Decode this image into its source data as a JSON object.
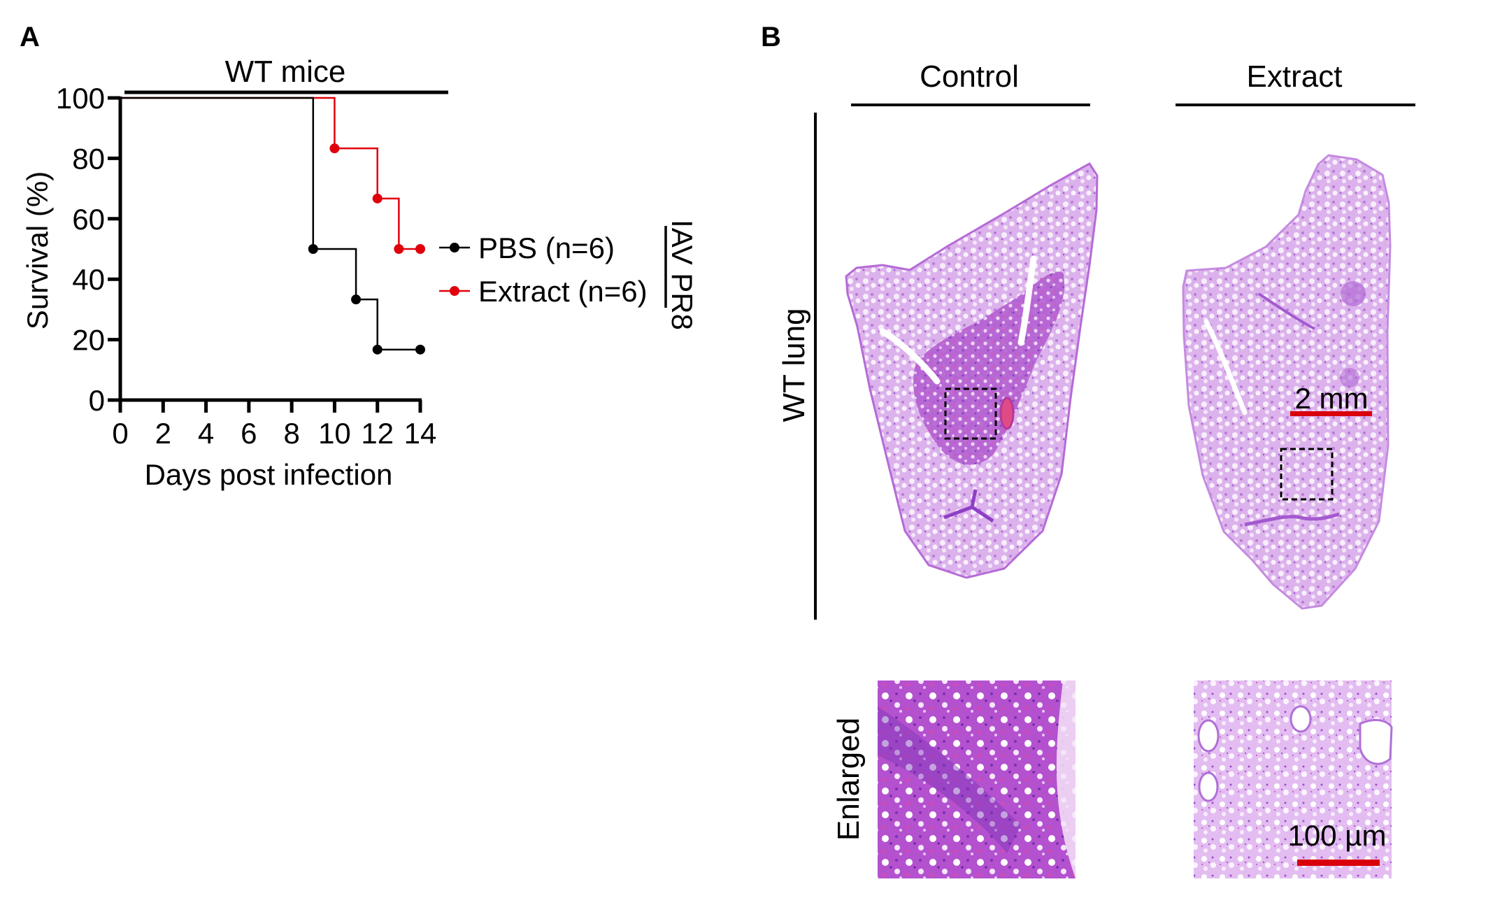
{
  "panels": {
    "a": {
      "letter": "A",
      "group_label": "WT mice",
      "side_label": "IAV PR8"
    },
    "b": {
      "letter": "B",
      "columns": [
        "Control",
        "Extract"
      ],
      "row_labels": {
        "whole": "WT lung",
        "enlarged": "Enlarged"
      },
      "scale_bars": {
        "whole": "2 mm",
        "enlarged": "100 µm"
      }
    }
  },
  "colors": {
    "pbs": "#000000",
    "extract": "#e0000b",
    "scale_bar": "#d9000b",
    "stain_light": "#e6c4f0",
    "stain_mid": "#c77be0",
    "stain_dark": "#8e3fc4",
    "stain_pink": "#d95bb8"
  },
  "chart_data": {
    "type": "line",
    "subtype": "kaplan-meier step",
    "title": "WT mice",
    "xlabel": "Days post infection",
    "ylabel": "Survival (%)",
    "xlim": [
      0,
      14
    ],
    "ylim": [
      0,
      100
    ],
    "xticks": [
      "0",
      "2",
      "4",
      "6",
      "8",
      "10",
      "12",
      "14"
    ],
    "yticks": [
      "0",
      "20",
      "40",
      "60",
      "80",
      "100"
    ],
    "xtick_values": [
      0,
      2,
      4,
      6,
      8,
      10,
      12,
      14
    ],
    "ytick_values": [
      0,
      20,
      40,
      60,
      80,
      100
    ],
    "grid": false,
    "legend_position": "right",
    "series": [
      {
        "name": "PBS (n=6)",
        "color": "#000000",
        "steps": [
          [
            0,
            100
          ],
          [
            9,
            50
          ],
          [
            11,
            33.3
          ],
          [
            12,
            16.7
          ],
          [
            14,
            16.7
          ]
        ],
        "markers": [
          [
            9,
            50
          ],
          [
            11,
            33.3
          ],
          [
            12,
            16.7
          ],
          [
            14,
            16.7
          ]
        ]
      },
      {
        "name": "Extract (n=6)",
        "color": "#e0000b",
        "steps": [
          [
            0,
            100
          ],
          [
            10,
            83.3
          ],
          [
            12,
            66.7
          ],
          [
            13,
            50
          ],
          [
            14,
            50
          ]
        ],
        "markers": [
          [
            10,
            83.3
          ],
          [
            12,
            66.7
          ],
          [
            13,
            50
          ],
          [
            14,
            50
          ]
        ]
      }
    ]
  }
}
